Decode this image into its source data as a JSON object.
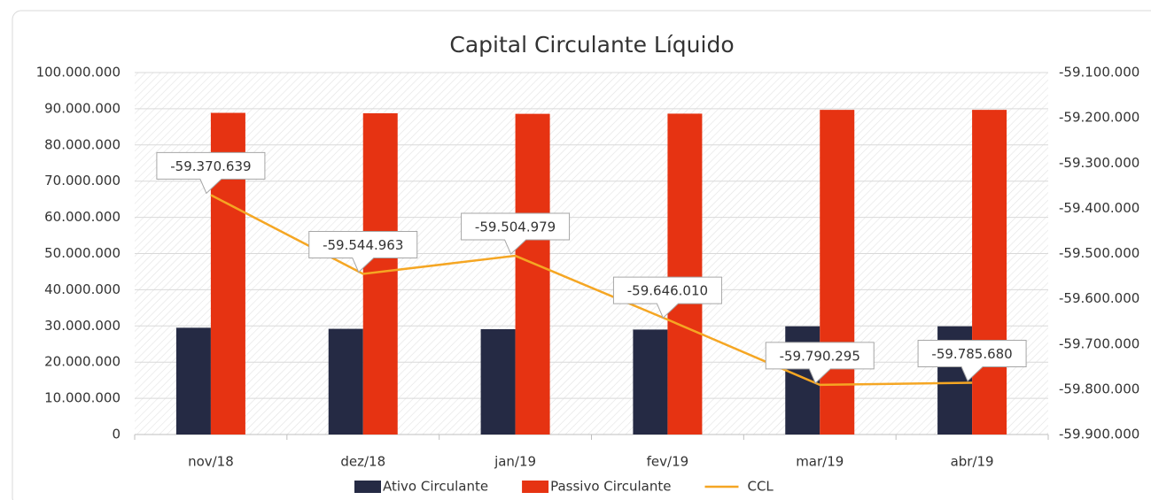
{
  "chart_data": {
    "type": "bar_line",
    "title": "Capital Circulante Líquido",
    "categories": [
      "nov/18",
      "dez/18",
      "jan/19",
      "fev/19",
      "mar/19",
      "abr/19"
    ],
    "series": [
      {
        "name": "Ativo Circulante",
        "color": "#252a44",
        "type": "bar",
        "values": [
          29500000,
          29200000,
          29100000,
          29000000,
          29900000,
          29900000
        ]
      },
      {
        "name": "Passivo Circulante",
        "color": "#e63312",
        "type": "bar",
        "values": [
          88870000,
          88750000,
          88600000,
          88650000,
          89700000,
          89700000
        ]
      },
      {
        "name": "CCL",
        "color": "#f5a623",
        "type": "line",
        "axis": "y2",
        "values": [
          -59370639,
          -59544963,
          -59504979,
          -59646010,
          -59790295,
          -59785680
        ],
        "value_labels": [
          "-59.370.639",
          "-59.544.963",
          "-59.504.979",
          "-59.646.010",
          "-59.790.295",
          "-59.785.680"
        ]
      }
    ],
    "ylim": [
      0,
      100000000
    ],
    "yticks": [
      0,
      {
        "value": 10000000,
        "label": "10.000.000"
      },
      {
        "value": 20000000,
        "label": "20.000.000"
      },
      {
        "value": 30000000,
        "label": "30.000.000"
      },
      {
        "value": 40000000,
        "label": "40.000.000"
      },
      {
        "value": 50000000,
        "label": "50.000.000"
      },
      {
        "value": 60000000,
        "label": "60.000.000"
      },
      {
        "value": 70000000,
        "label": "70.000.000"
      },
      {
        "value": 80000000,
        "label": "80.000.000"
      },
      {
        "value": 90000000,
        "label": "90.000.000"
      },
      {
        "value": 100000000,
        "label": "100.000.000"
      }
    ],
    "y2lim": [
      -59900000,
      -59100000
    ],
    "y2ticks": [
      {
        "value": -59900000,
        "label": "-59.900.000"
      },
      {
        "value": -59800000,
        "label": "-59.800.000"
      },
      {
        "value": -59700000,
        "label": "-59.700.000"
      },
      {
        "value": -59600000,
        "label": "-59.600.000"
      },
      {
        "value": -59500000,
        "label": "-59.500.000"
      },
      {
        "value": -59400000,
        "label": "-59.400.000"
      },
      {
        "value": -59300000,
        "label": "-59.300.000"
      },
      {
        "value": -59200000,
        "label": "-59.200.000"
      },
      {
        "value": -59100000,
        "label": "-59.100.000"
      }
    ],
    "grid": true,
    "legend": "bottom"
  }
}
